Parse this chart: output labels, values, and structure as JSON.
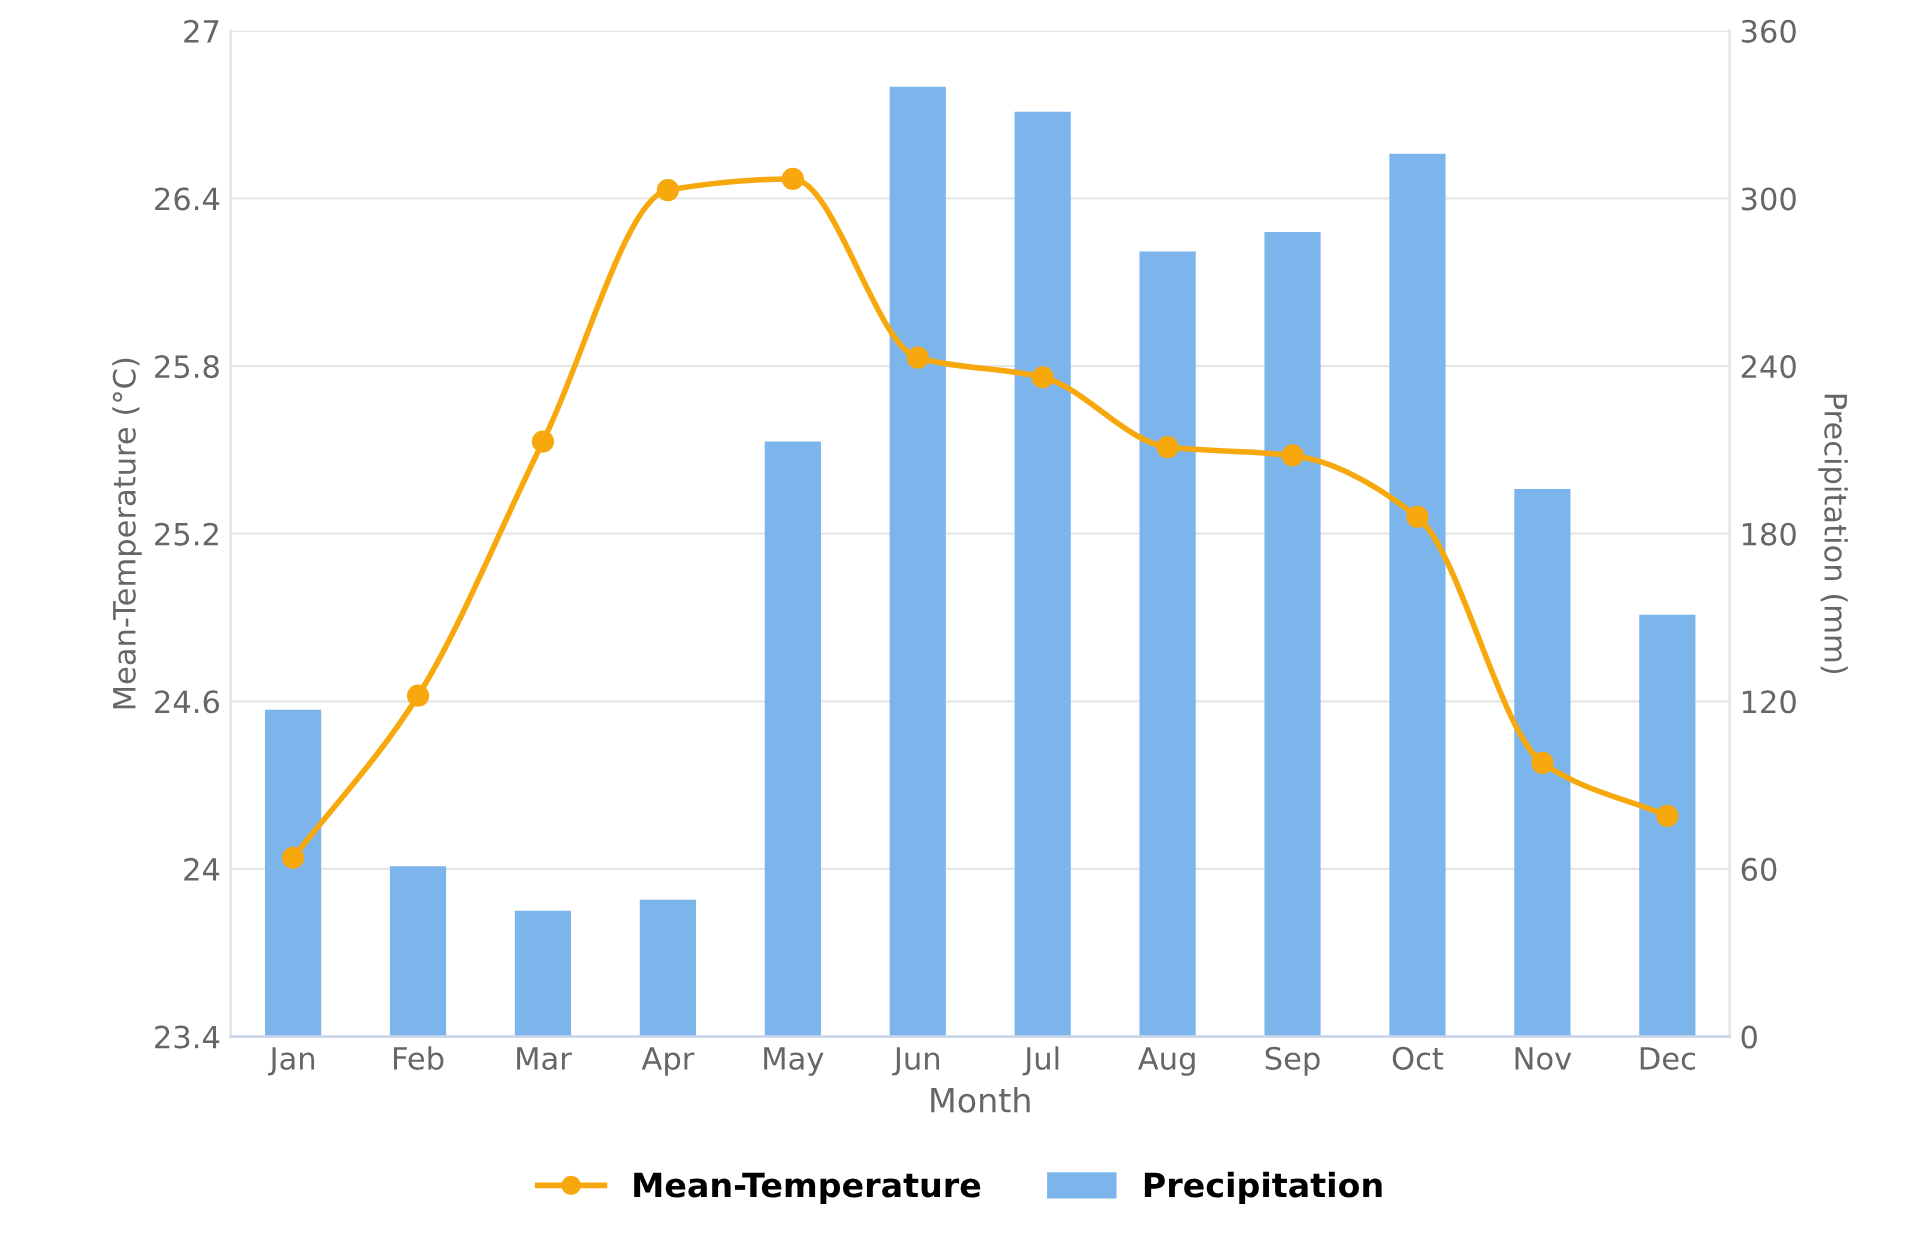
{
  "chart_data": {
    "type": "bar",
    "xlabel": "Month",
    "ylabel": "Mean-Temperature (°C)",
    "y2label": "Precipitation (mm)",
    "categories": [
      "Jan",
      "Feb",
      "Mar",
      "Apr",
      "May",
      "Jun",
      "Jul",
      "Aug",
      "Sep",
      "Oct",
      "Nov",
      "Dec"
    ],
    "series": [
      {
        "name": "Mean-Temperature",
        "type": "line",
        "color": "#f7a80d",
        "marker": "circle",
        "line_style": "solid",
        "values": [
          24.04,
          24.62,
          25.53,
          26.43,
          26.47,
          25.83,
          25.76,
          25.51,
          25.48,
          25.26,
          24.38,
          24.19
        ]
      },
      {
        "name": "Precipitation",
        "axis": "y2",
        "color": "#7cb5ec",
        "values": [
          117,
          61,
          45,
          49,
          213,
          340,
          331,
          281,
          288,
          316,
          196,
          151
        ]
      }
    ],
    "ylim": [
      23.4,
      27
    ],
    "yticks": [
      23.4,
      24,
      24.6,
      25.2,
      25.8,
      26.4,
      27
    ],
    "y2lim": [
      0,
      360
    ],
    "y2ticks": [
      0,
      60,
      120,
      180,
      240,
      300,
      360
    ],
    "grid": "y",
    "legend": "bottom"
  }
}
